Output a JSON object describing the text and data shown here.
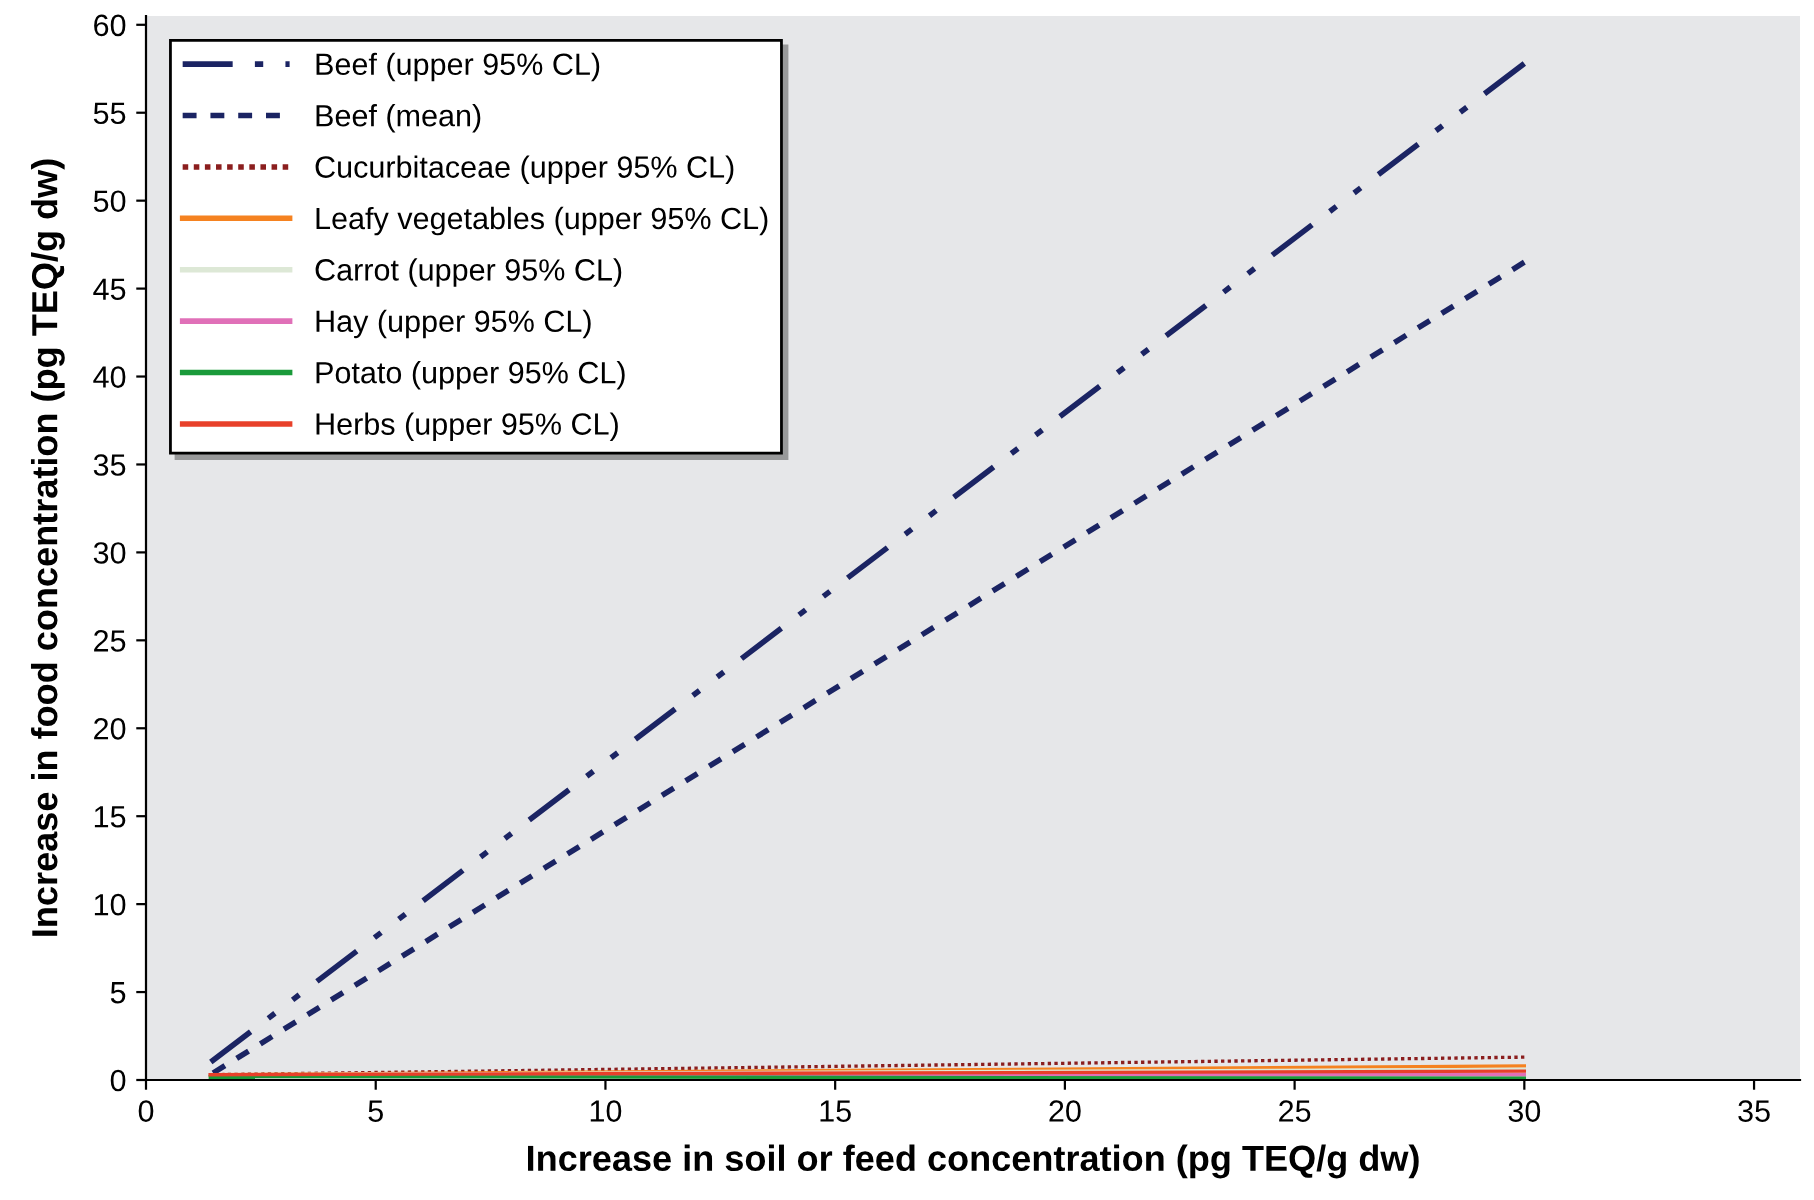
{
  "chart_data": {
    "type": "line",
    "xlabel": "Increase in soil or feed concentration (pg TEQ/g dw)",
    "ylabel": "Increase in food concentration (pg TEQ/g dw)",
    "x": [
      1.4,
      30
    ],
    "series": [
      {
        "name": "Beef (upper 95% CL)",
        "color": "#1b2463",
        "values": [
          1.0,
          57.8
        ],
        "line_style": "dashdot"
      },
      {
        "name": "Beef (mean)",
        "color": "#1b2463",
        "values": [
          0.3,
          46.5
        ],
        "line_style": "dashed"
      },
      {
        "name": "Cucurbitaceae (upper 95% CL)",
        "color": "#8b1e1e",
        "values": [
          0.3,
          1.3
        ],
        "line_style": "dotted"
      },
      {
        "name": "Leafy vegetables (upper 95% CL)",
        "color": "#f58220",
        "values": [
          0.3,
          0.8
        ],
        "line_style": "solid"
      },
      {
        "name": "Carrot (upper 95% CL)",
        "color": "#dde8d6",
        "values": [
          0.3,
          0.6
        ],
        "line_style": "solid"
      },
      {
        "name": "Hay (upper 95% CL)",
        "color": "#e070b8",
        "values": [
          0.3,
          0.3
        ],
        "line_style": "solid"
      },
      {
        "name": "Potato (upper 95% CL)",
        "color": "#1a9a3a",
        "values": [
          0.2,
          0.1
        ],
        "line_style": "solid"
      },
      {
        "name": "Herbs (upper 95% CL)",
        "color": "#e8402a",
        "values": [
          0.3,
          0.5
        ],
        "line_style": "solid"
      }
    ],
    "xlim": [
      0,
      36
    ],
    "xticks": [
      0,
      5,
      10,
      15,
      20,
      25,
      30,
      35
    ],
    "ylim": [
      0,
      60.5
    ],
    "yticks": [
      0,
      5,
      10,
      15,
      20,
      25,
      30,
      35,
      40,
      45,
      50,
      55,
      60
    ],
    "grid": false,
    "legend": "top left",
    "marker": "none"
  }
}
